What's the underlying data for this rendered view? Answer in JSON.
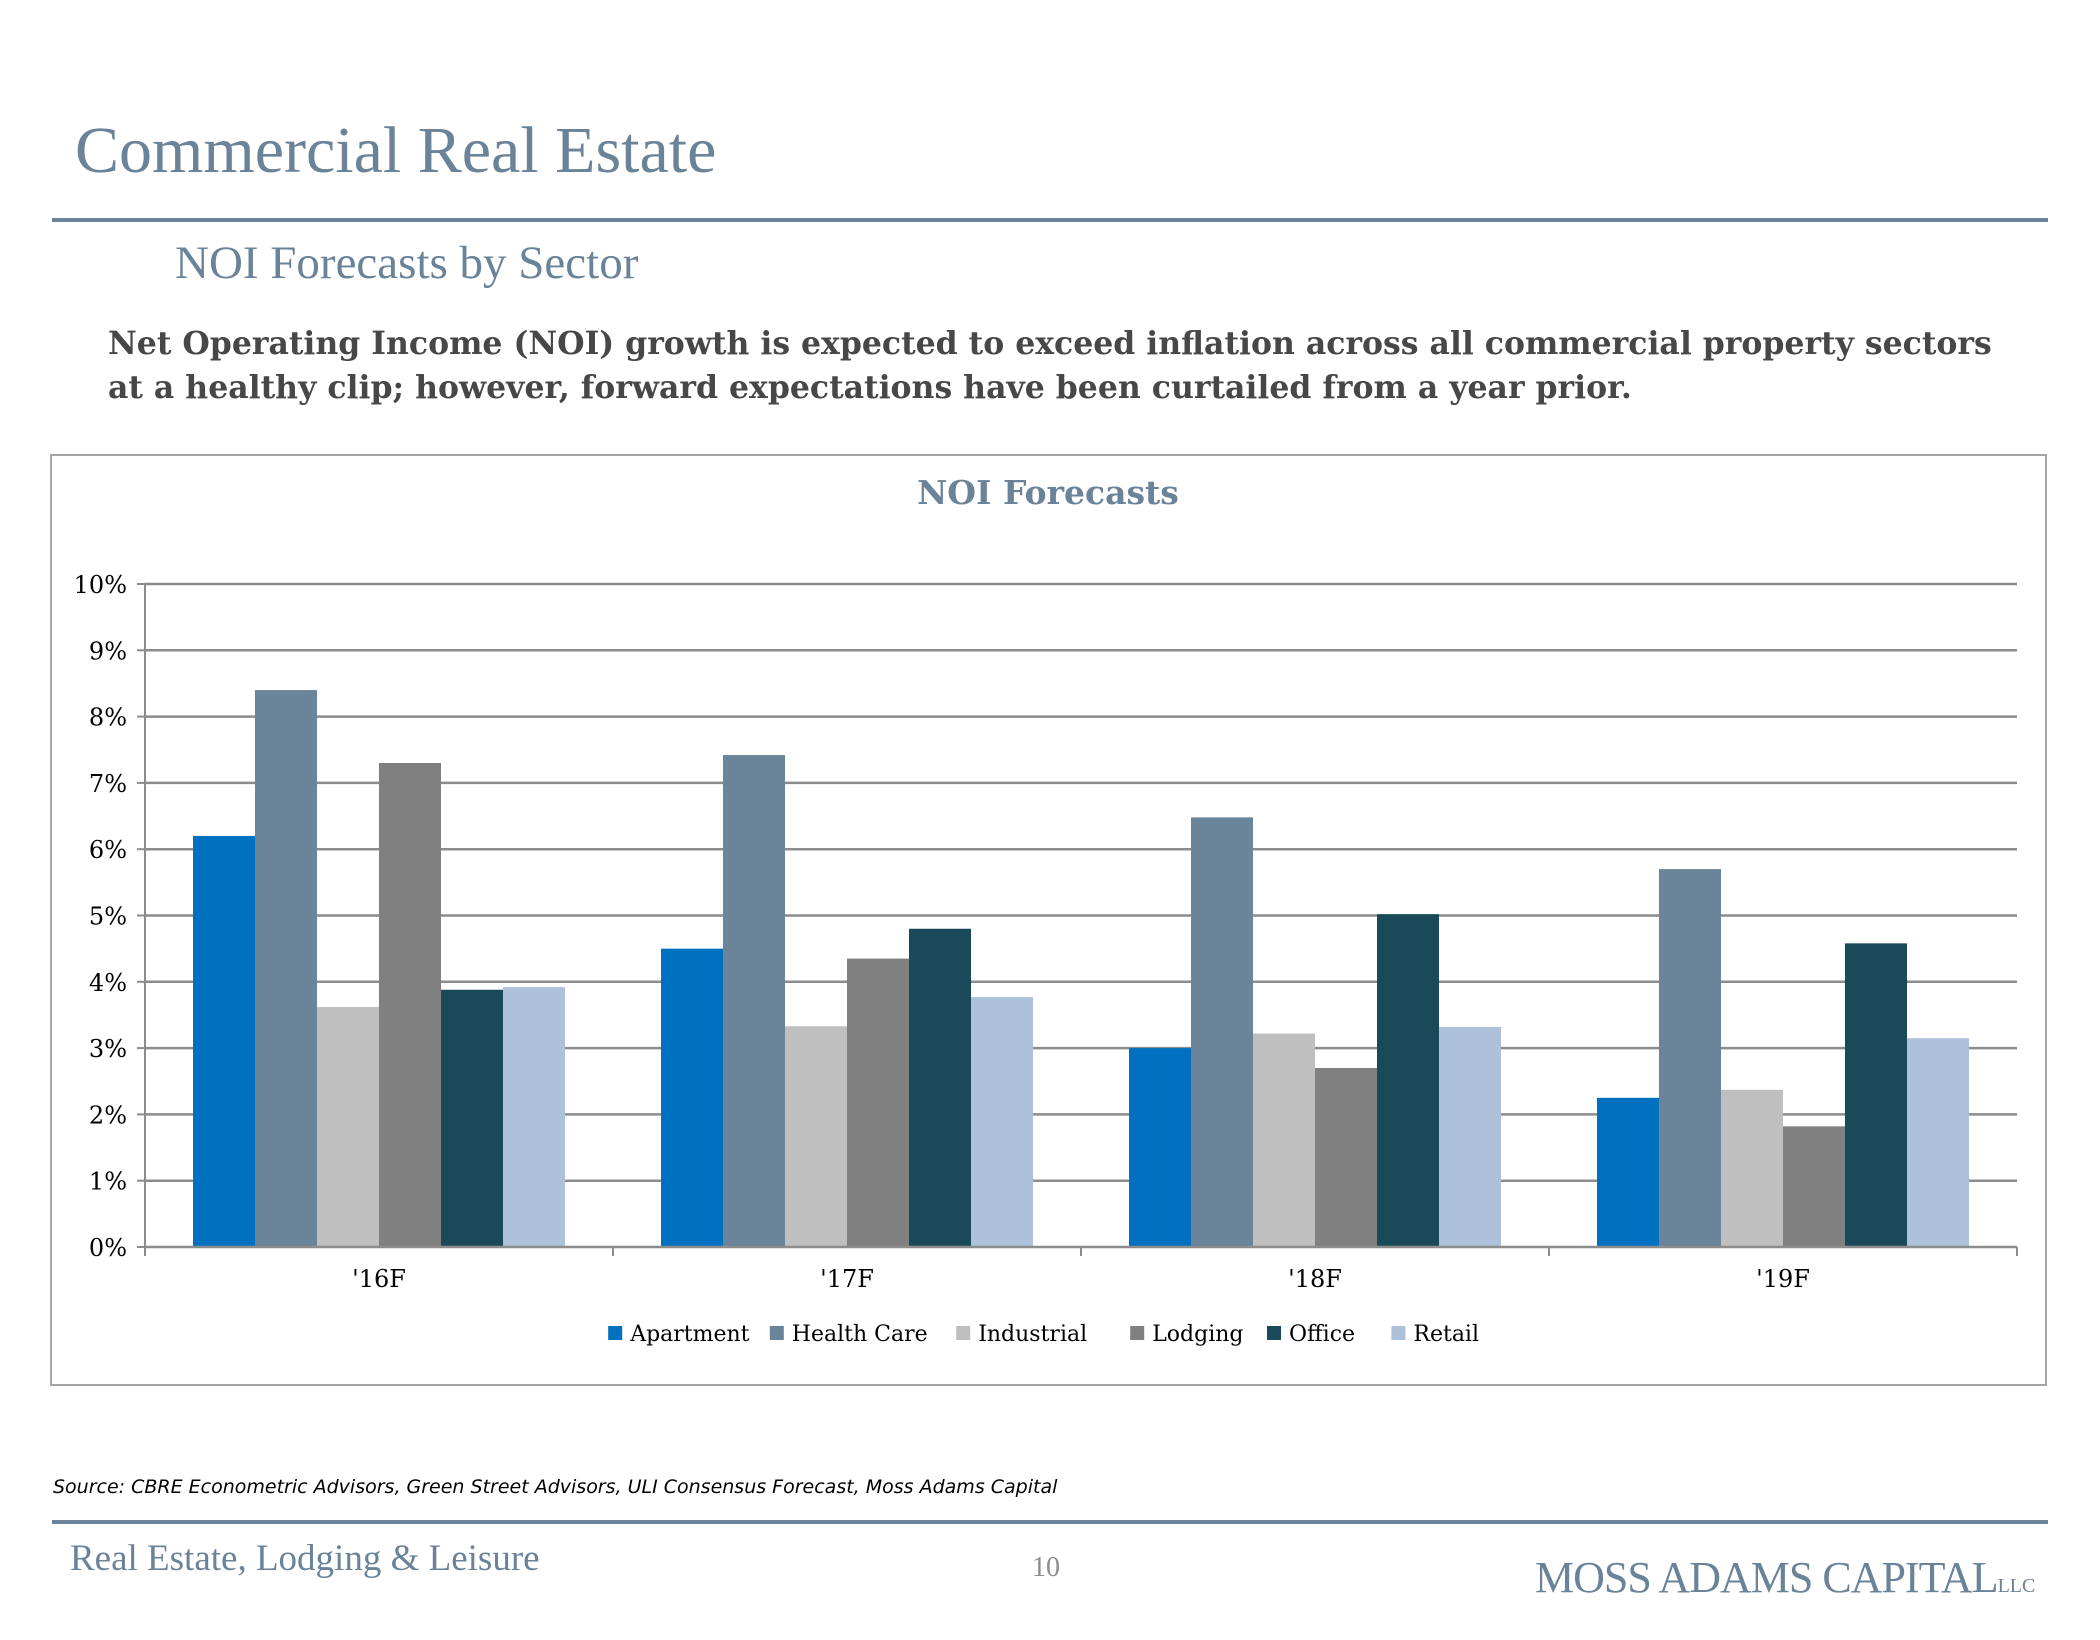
{
  "header": {
    "title": "Commercial Real Estate",
    "subtitle": "NOI Forecasts by Sector",
    "lead": "Net Operating Income (NOI) growth is expected to exceed inflation across all commercial property sectors at a healthy clip; however, forward expectations have been curtailed from a year prior."
  },
  "chart_data": {
    "type": "bar",
    "title": "NOI Forecasts",
    "xlabel": "",
    "ylabel": "",
    "categories": [
      "'16F",
      "'17F",
      "'18F",
      "'19F"
    ],
    "ylim": [
      0,
      10
    ],
    "y_ticks": [
      0,
      1,
      2,
      3,
      4,
      5,
      6,
      7,
      8,
      9,
      10
    ],
    "y_tick_labels": [
      "0%",
      "1%",
      "2%",
      "3%",
      "4%",
      "5%",
      "6%",
      "7%",
      "8%",
      "9%",
      "10%"
    ],
    "grid": true,
    "legend_position": "bottom",
    "series": [
      {
        "name": "Apartment",
        "color": "#0070c0",
        "values": [
          6.2,
          4.5,
          3.0,
          2.25
        ]
      },
      {
        "name": "Health Care",
        "color": "#6a8599",
        "values": [
          8.4,
          7.42,
          6.48,
          5.7
        ]
      },
      {
        "name": "Industrial",
        "color": "#bfbfbf",
        "values": [
          3.62,
          3.33,
          3.22,
          2.37
        ]
      },
      {
        "name": "Lodging",
        "color": "#808080",
        "values": [
          7.3,
          4.35,
          2.7,
          1.82
        ]
      },
      {
        "name": "Office",
        "color": "#1a4a5a",
        "values": [
          3.88,
          4.8,
          5.02,
          4.58
        ]
      },
      {
        "name": "Retail",
        "color": "#adc2da",
        "values": [
          3.92,
          3.77,
          3.32,
          3.15
        ]
      }
    ]
  },
  "footer": {
    "source": "Source: CBRE Econometric Advisors, Green Street Advisors, ULI Consensus Forecast, Moss Adams Capital",
    "left": "Real Estate, Lodging & Leisure",
    "page": "10",
    "brand": "MOSS ADAMS CAPITAL",
    "brand_suffix": "LLC"
  }
}
